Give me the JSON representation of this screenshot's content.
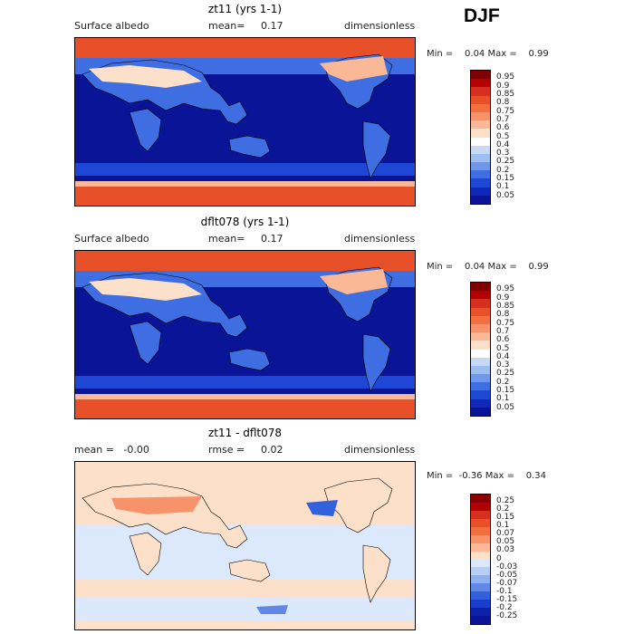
{
  "season": "DJF",
  "panels": [
    {
      "title": "zt11 (yrs 1-1)",
      "left_label": "Surface albedo",
      "mean_label": "mean=",
      "mean_value": "0.17",
      "units": "dimensionless",
      "min_label": "Min =",
      "min_value": "0.04",
      "max_label": "Max =",
      "max_value": "0.99",
      "type": "field"
    },
    {
      "title": "dflt078 (yrs 1-1)",
      "left_label": "Surface albedo",
      "mean_label": "mean=",
      "mean_value": "0.17",
      "units": "dimensionless",
      "min_label": "Min =",
      "min_value": "0.04",
      "max_label": "Max =",
      "max_value": "0.99",
      "type": "field"
    },
    {
      "title": "zt11 - dflt078",
      "left_label": "mean =   -0.00",
      "mean_label": "rmse =",
      "mean_value": "0.02",
      "units": "dimensionless",
      "min_label": "Min =",
      "min_value": "-0.36",
      "max_label": "Max =",
      "max_value": "0.34",
      "type": "diff"
    }
  ],
  "colorbar_field": {
    "labels": [
      "0.95",
      "0.9",
      "0.85",
      "0.8",
      "0.75",
      "0.7",
      "0.6",
      "0.5",
      "0.4",
      "0.3",
      "0.25",
      "0.2",
      "0.15",
      "0.1",
      "0.05"
    ],
    "colors": [
      "#7f0000",
      "#b30000",
      "#d62f1f",
      "#e8502a",
      "#f2703f",
      "#f7936a",
      "#fab896",
      "#fde0c9",
      "#ffffff",
      "#c7d9f5",
      "#9ebdf0",
      "#6f97ea",
      "#3f6ee2",
      "#1f47d6",
      "#1028b8",
      "#0a1496"
    ]
  },
  "colorbar_diff": {
    "labels": [
      "0.25",
      "0.2",
      "0.15",
      "0.1",
      "0.07",
      "0.05",
      "0.03",
      "0",
      "-0.03",
      "-0.05",
      "-0.07",
      "-0.1",
      "-0.15",
      "-0.2",
      "-0.25"
    ],
    "colors": [
      "#8b0000",
      "#b30000",
      "#d62f1f",
      "#e8502a",
      "#f2703f",
      "#f7936a",
      "#fab896",
      "#fde0c9",
      "#dce8fb",
      "#b8cff5",
      "#8fb0ef",
      "#5f88e8",
      "#3361de",
      "#1b3dcb",
      "#0c22aa",
      "#0a1496"
    ]
  }
}
